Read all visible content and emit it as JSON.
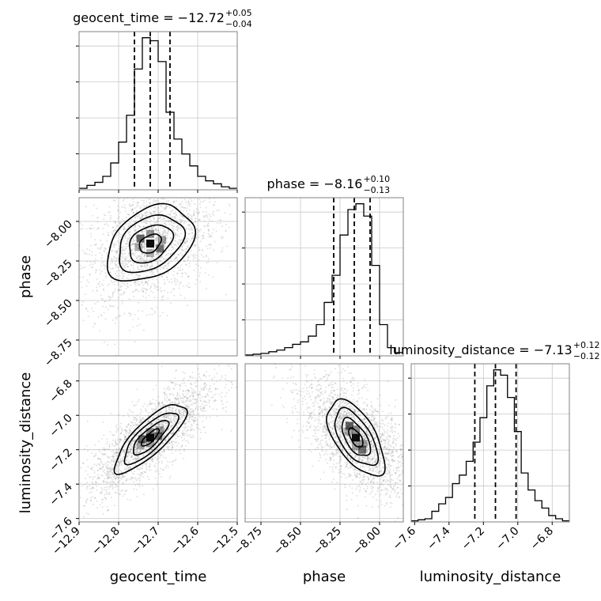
{
  "chart_data": {
    "type": "corner",
    "parameters": [
      "geocent_time",
      "phase",
      "luminosity_distance"
    ],
    "axes": {
      "geocent_time": {
        "label": "geocent_time",
        "range": [
          -12.9,
          -12.5
        ],
        "ticks": [
          -12.9,
          -12.8,
          -12.7,
          -12.6,
          -12.5
        ],
        "tick_labels": [
          "−12.9",
          "−12.8",
          "−12.7",
          "−12.6",
          "−12.5"
        ]
      },
      "phase": {
        "label": "phase",
        "range": [
          -8.85,
          -7.85
        ],
        "ticks": [
          -8.75,
          -8.5,
          -8.25,
          -8.0
        ],
        "tick_labels": [
          "−8.75",
          "−8.50",
          "−8.25",
          "−8.00"
        ]
      },
      "luminosity_distance": {
        "label": "luminosity_distance",
        "range": [
          -7.62,
          -6.7
        ],
        "ticks": [
          -7.6,
          -7.4,
          -7.2,
          -7.0,
          -6.8
        ],
        "tick_labels": [
          "−7.6",
          "−7.4",
          "−7.2",
          "−7.0",
          "−6.8"
        ]
      }
    },
    "marginals": [
      {
        "param": "geocent_time",
        "title": {
          "main": "geocent_time = −12.72",
          "sup": "+0.05",
          "sub": "−0.04"
        },
        "median": -12.72,
        "quantiles": [
          -12.76,
          -12.72,
          -12.67
        ],
        "bins": [
          -12.9,
          -12.88,
          -12.86,
          -12.84,
          -12.82,
          -12.8,
          -12.78,
          -12.76,
          -12.74,
          -12.72,
          -12.7,
          -12.68,
          -12.66,
          -12.64,
          -12.62,
          -12.6,
          -12.58,
          -12.56,
          -12.54,
          -12.52,
          -12.5
        ],
        "counts": [
          1,
          3,
          5,
          9,
          18,
          32,
          50,
          81,
          102,
          100,
          86,
          52,
          34,
          24,
          16,
          9,
          6,
          4,
          2,
          1
        ]
      },
      {
        "param": "phase",
        "title": {
          "main": "phase = −8.16",
          "sup": "+0.10",
          "sub": "−0.13"
        },
        "median": -8.16,
        "quantiles": [
          -8.29,
          -8.16,
          -8.06
        ],
        "bins": [
          -8.85,
          -8.8,
          -8.75,
          -8.7,
          -8.65,
          -8.6,
          -8.55,
          -8.5,
          -8.45,
          -8.4,
          -8.35,
          -8.3,
          -8.25,
          -8.2,
          -8.15,
          -8.1,
          -8.05,
          -8.0,
          -7.95,
          -7.9,
          -7.85
        ],
        "counts": [
          1,
          2,
          3,
          5,
          7,
          10,
          14,
          17,
          24,
          38,
          65,
          98,
          147,
          178,
          185,
          170,
          110,
          38,
          10,
          4
        ]
      },
      {
        "param": "luminosity_distance",
        "title": {
          "main": "luminosity_distance = −7.13",
          "sup": "+0.12",
          "sub": "−0.12"
        },
        "median": -7.13,
        "quantiles": [
          -7.25,
          -7.13,
          -7.01
        ],
        "bins": [
          -7.62,
          -7.58,
          -7.54,
          -7.5,
          -7.46,
          -7.42,
          -7.38,
          -7.34,
          -7.3,
          -7.26,
          -7.22,
          -7.18,
          -7.14,
          -7.1,
          -7.06,
          -7.02,
          -6.98,
          -6.94,
          -6.9,
          -6.86,
          -6.82,
          -6.78,
          -6.74,
          -6.7
        ],
        "counts": [
          1,
          2,
          3,
          10,
          17,
          23,
          36,
          44,
          57,
          75,
          98,
          128,
          143,
          138,
          117,
          85,
          46,
          30,
          20,
          13,
          6,
          3,
          1
        ]
      }
    ],
    "joint": [
      {
        "x": "geocent_time",
        "y": "phase",
        "center": [
          -12.72,
          -8.14
        ],
        "sigma": [
          0.055,
          0.12
        ],
        "rho": 0.35,
        "scatter_sigma": [
          0.085,
          0.2
        ],
        "scatter_points": 2000
      },
      {
        "x": "geocent_time",
        "y": "luminosity_distance",
        "center": [
          -12.72,
          -7.13
        ],
        "sigma": [
          0.045,
          0.1
        ],
        "rho": 0.8,
        "scatter_sigma": [
          0.08,
          0.17
        ],
        "scatter_points": 2200
      },
      {
        "x": "phase",
        "y": "luminosity_distance",
        "center": [
          -8.15,
          -7.13
        ],
        "sigma": [
          0.09,
          0.11
        ],
        "rho": -0.6,
        "scatter_sigma": [
          0.17,
          0.17
        ],
        "scatter_points": 2200
      }
    ],
    "contour_levels_sigma": [
      0.5,
      1.0,
      1.5,
      2.0
    ],
    "grid": true,
    "colors": {
      "line": "#000000",
      "grid": "#c8c8c8",
      "scatter": "#7a7a7a",
      "frame": "#808080"
    }
  }
}
